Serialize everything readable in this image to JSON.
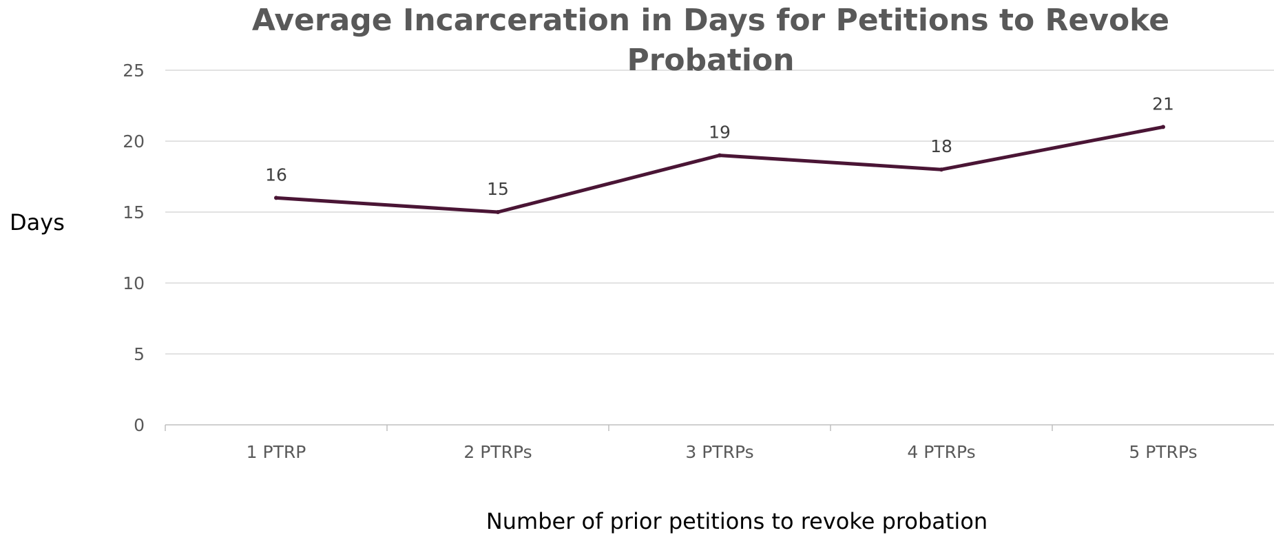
{
  "chart_data": {
    "type": "line",
    "title_lines": [
      "Average Incarceration in Days for Petitions to Revoke",
      "Probation"
    ],
    "xlabel": "Number of prior petitions to revoke probation",
    "ylabel": "Days",
    "categories": [
      "1 PTRP",
      "2 PTRPs",
      "3 PTRPs",
      "4 PTRPs",
      "5 PTRPs"
    ],
    "series": [
      {
        "values": [
          16,
          15,
          19,
          18,
          21
        ],
        "color": "#4a1535"
      }
    ],
    "ylim": [
      0,
      25
    ],
    "yticks": [
      "0",
      "5",
      "10",
      "15",
      "20",
      "25"
    ],
    "grid": true,
    "data_labels": true
  }
}
